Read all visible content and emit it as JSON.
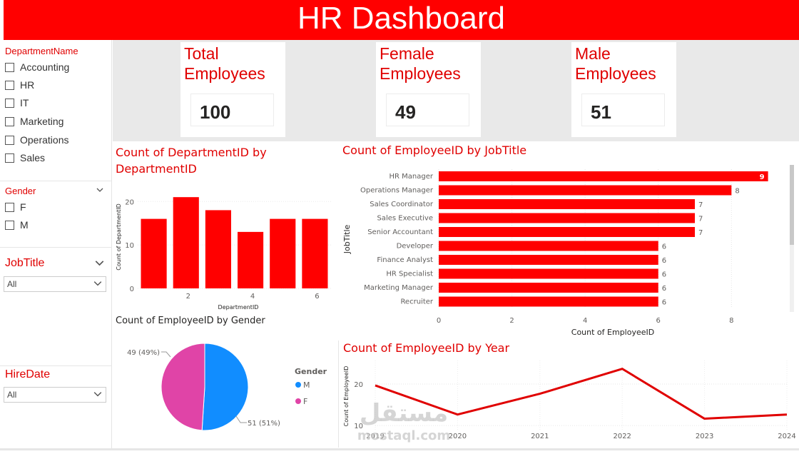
{
  "header": {
    "title": "HR Dashboard",
    "bg": "#ff0000"
  },
  "sidebar": {
    "department": {
      "title": "DepartmentName",
      "items": [
        "Accounting",
        "HR",
        "IT",
        "Marketing",
        "Operations",
        "Sales"
      ]
    },
    "gender": {
      "title": "Gender",
      "items": [
        "F",
        "M"
      ]
    },
    "jobtitle": {
      "title": "JobTitle",
      "value": "All"
    },
    "hiredate": {
      "title": "HireDate",
      "value": "All"
    }
  },
  "kpis": [
    {
      "title": "Total\nEmployees",
      "value": "100"
    },
    {
      "title": "Female\nEmployees",
      "value": "49"
    },
    {
      "title": "Male\nEmployees",
      "value": "51"
    }
  ],
  "chart_data": [
    {
      "type": "bar",
      "title": "Count of DepartmentID by DepartmentID",
      "xlabel": "DepartmentID",
      "ylabel": "Count of DepartmentID",
      "x": [
        1,
        2,
        3,
        4,
        5,
        6
      ],
      "values": [
        16,
        21,
        18,
        13,
        16,
        16
      ],
      "x_ticks": [
        "2",
        "4",
        "6"
      ],
      "y_ticks": [
        "0",
        "10",
        "20"
      ],
      "ylim": [
        0,
        23
      ],
      "color": "#ff0000"
    },
    {
      "type": "bar",
      "orientation": "horizontal",
      "title": "Count of EmployeeID by JobTitle",
      "xlabel": "Count of EmployeeID",
      "ylabel": "JobTitle",
      "categories": [
        "HR Manager",
        "Operations Manager",
        "Sales Coordinator",
        "Sales Executive",
        "Senior Accountant",
        "Developer",
        "Finance Analyst",
        "HR Specialist",
        "Marketing Manager",
        "Recruiter"
      ],
      "values": [
        9,
        8,
        7,
        7,
        7,
        6,
        6,
        6,
        6,
        6
      ],
      "x_ticks": [
        "0",
        "2",
        "4",
        "6",
        "8"
      ],
      "xlim": [
        0,
        9.3
      ],
      "color": "#ff0000"
    },
    {
      "type": "pie",
      "title": "Count of EmployeeID by Gender",
      "legend_title": "Gender",
      "slices": [
        {
          "name": "M",
          "value": 51,
          "label": "51 (51%)",
          "color": "#118dff"
        },
        {
          "name": "F",
          "value": 49,
          "label": "49 (49%)",
          "color": "#e044a7"
        }
      ]
    },
    {
      "type": "line",
      "title": "Count of EmployeeID by Year",
      "ylabel": "Count of EmployeeID",
      "x": [
        "2019",
        "2020",
        "2021",
        "2022",
        "2023",
        "2024"
      ],
      "values": [
        20,
        13,
        18,
        24,
        12,
        13
      ],
      "y_ticks": [
        "10",
        "20"
      ],
      "ylim": [
        9,
        26
      ],
      "color": "#e00000"
    }
  ],
  "watermark": {
    "text": "مستقل",
    "sub": "mostaql.com"
  }
}
